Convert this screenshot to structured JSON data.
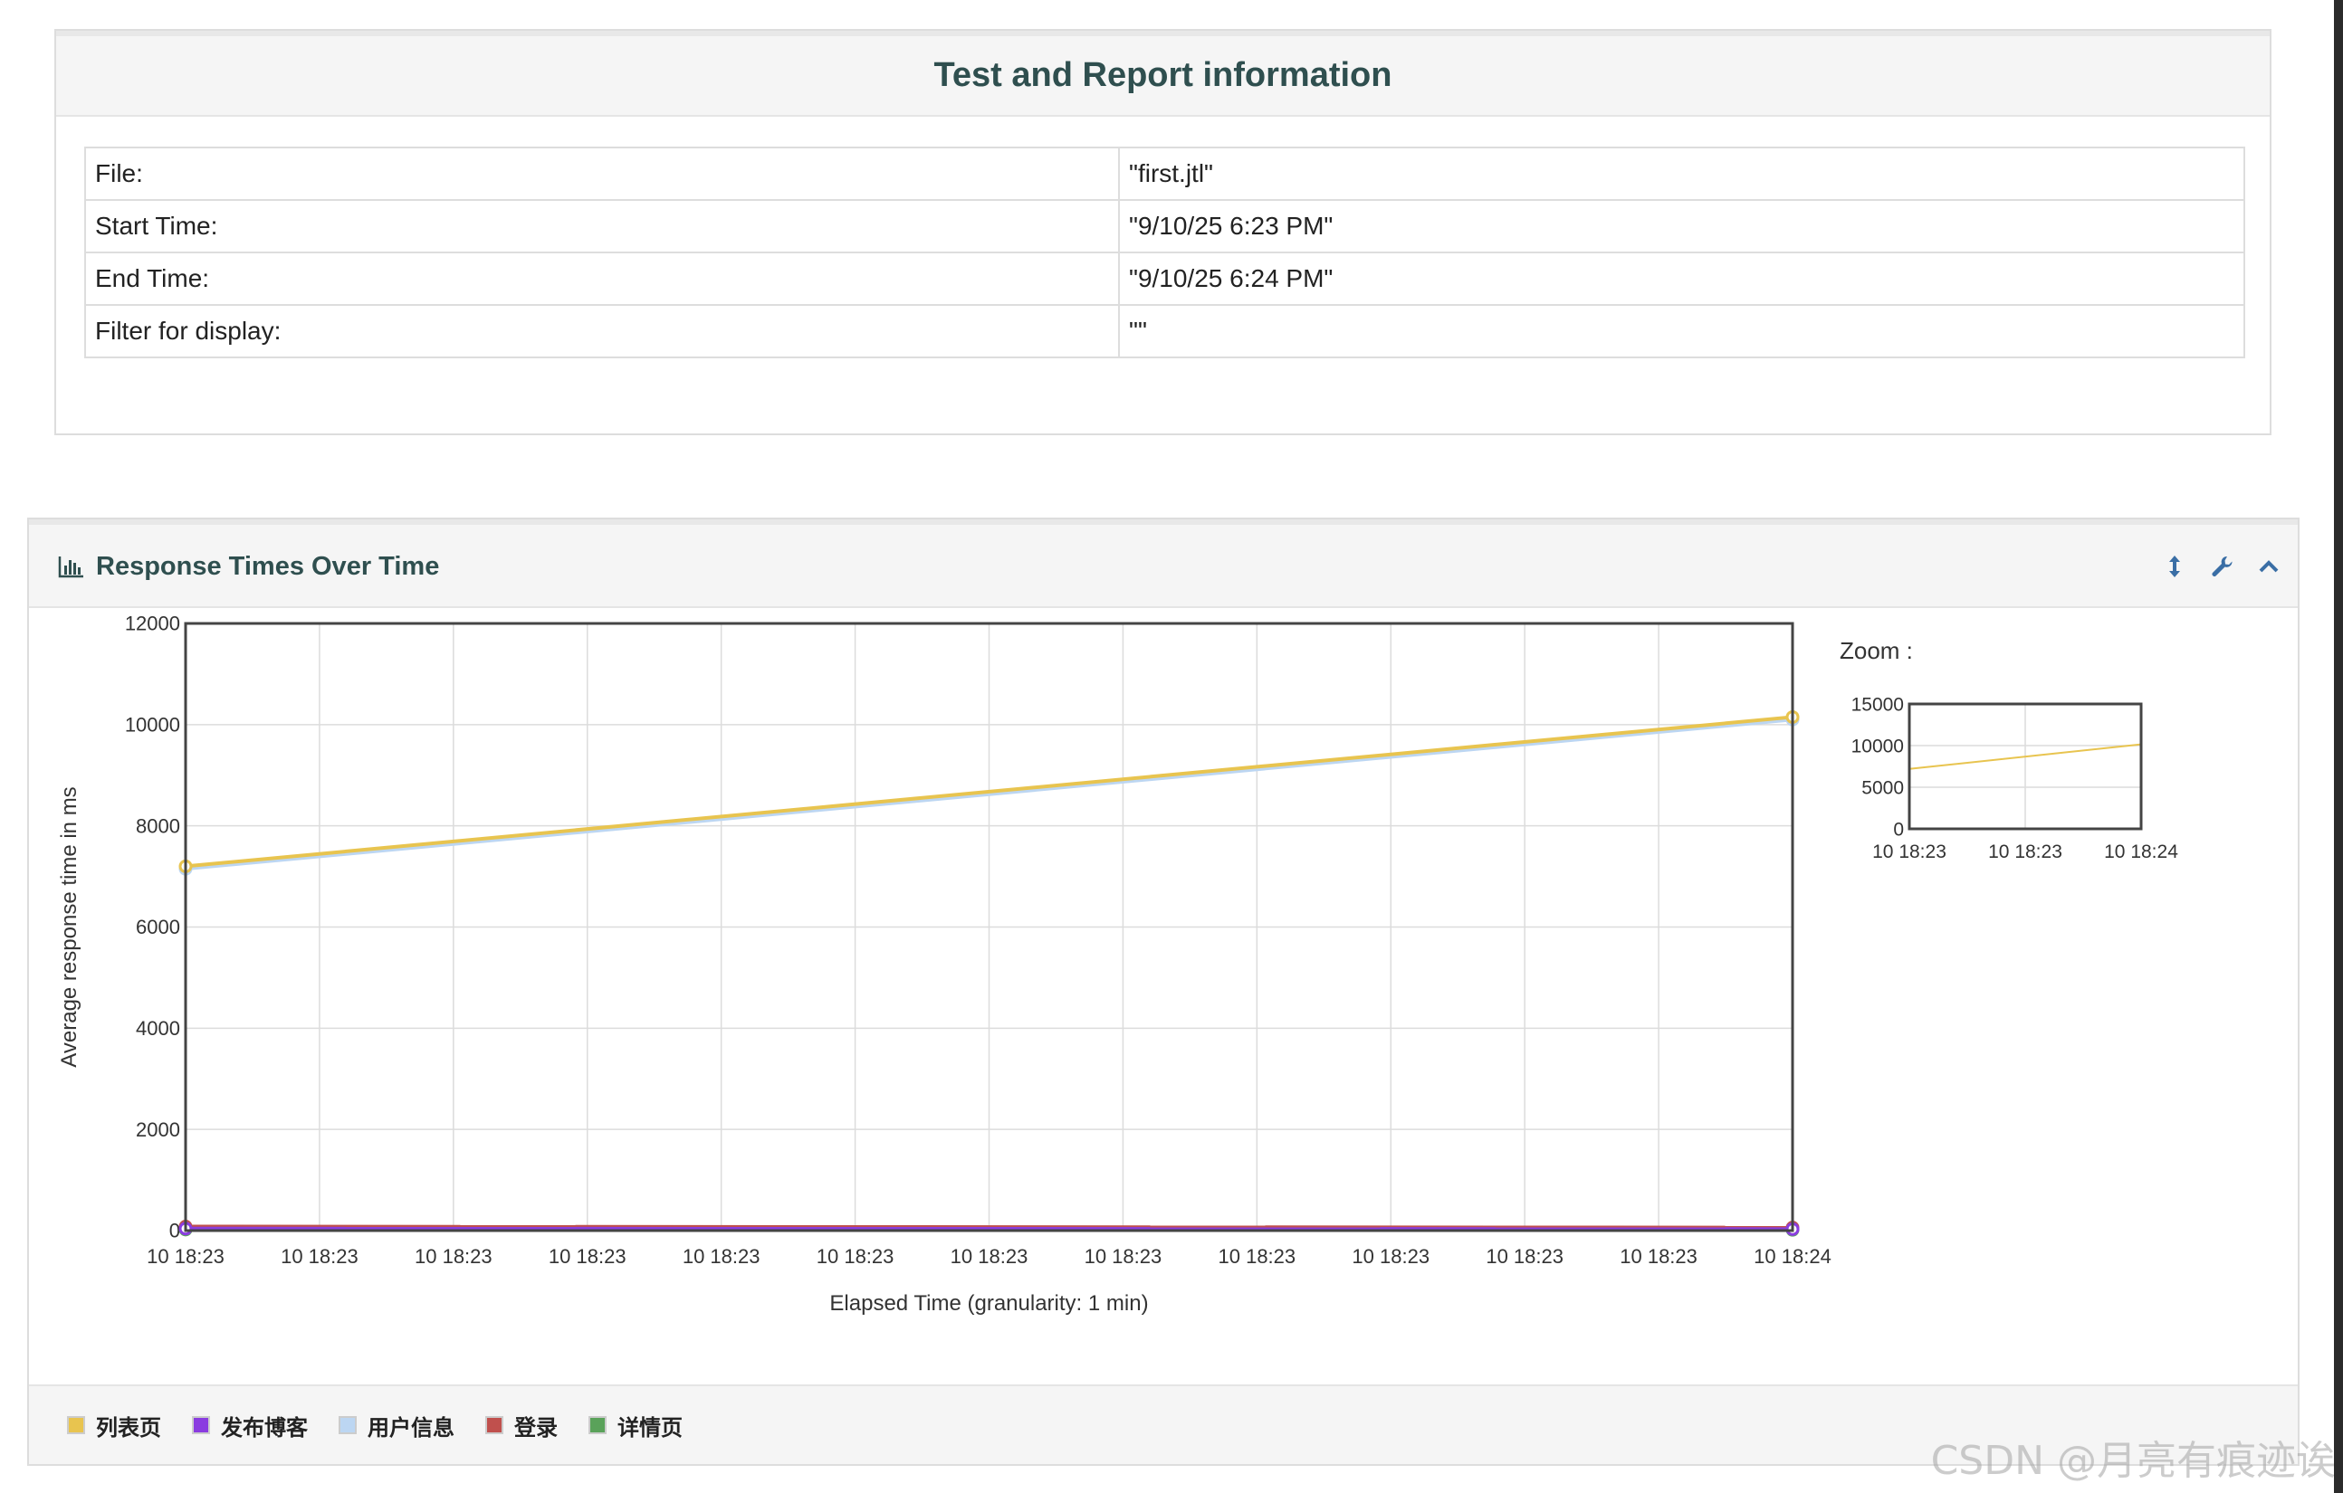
{
  "report_info": {
    "title": "Test and Report information",
    "rows": [
      {
        "key": "File:",
        "value": "\"first.jtl\""
      },
      {
        "key": "Start Time:",
        "value": "\"9/10/25 6:23 PM\""
      },
      {
        "key": "End Time:",
        "value": "\"9/10/25 6:24 PM\""
      },
      {
        "key": "Filter for display:",
        "value": "\"\""
      }
    ]
  },
  "chart_panel": {
    "title": "Response Times Over Time",
    "title_icon": "bar-chart-icon",
    "buttons": [
      "resize-vertical-icon",
      "wrench-icon",
      "chevron-up-icon"
    ]
  },
  "chart_data": [
    {
      "type": "line",
      "ylabel": "Average response time in ms",
      "xlabel": "Elapsed Time (granularity: 1 min)",
      "ylim": [
        0,
        12000
      ],
      "y_ticks": [
        "0",
        "2000",
        "4000",
        "6000",
        "8000",
        "10000",
        "12000"
      ],
      "x_ticks": [
        "10 18:23",
        "10 18:23",
        "10 18:23",
        "10 18:23",
        "10 18:23",
        "10 18:23",
        "10 18:23",
        "10 18:23",
        "10 18:23",
        "10 18:23",
        "10 18:23",
        "10 18:23",
        "10 18:24"
      ],
      "x": [
        0,
        1
      ],
      "grid": true,
      "legend_position": "bottom",
      "series": [
        {
          "name": "列表页",
          "color": "#e8c44f",
          "values": [
            7200,
            10150
          ]
        },
        {
          "name": "发布博客",
          "color": "#8a3ce0",
          "values": [
            40,
            30
          ]
        },
        {
          "name": "用户信息",
          "color": "#bcd6f2",
          "values": [
            7150,
            10100
          ]
        },
        {
          "name": "登录",
          "color": "#c0504d",
          "values": [
            80,
            60
          ]
        },
        {
          "name": "详情页",
          "color": "#5aa25a",
          "values": [
            20,
            15
          ]
        }
      ]
    },
    {
      "type": "line",
      "label": "Zoom :",
      "ylim": [
        0,
        15000
      ],
      "y_ticks": [
        "0",
        "5000",
        "10000",
        "15000"
      ],
      "x_ticks": [
        "10 18:23",
        "10 18:23",
        "10 18:24"
      ],
      "x": [
        0,
        1
      ],
      "grid": true,
      "series": [
        {
          "name": "列表页",
          "color": "#e8c44f",
          "values": [
            7200,
            10150
          ]
        },
        {
          "name": "详情页",
          "color": "#5aa25a",
          "values": [
            20,
            15
          ]
        }
      ]
    }
  ],
  "watermark": "CSDN @月亮有痕迹诶"
}
